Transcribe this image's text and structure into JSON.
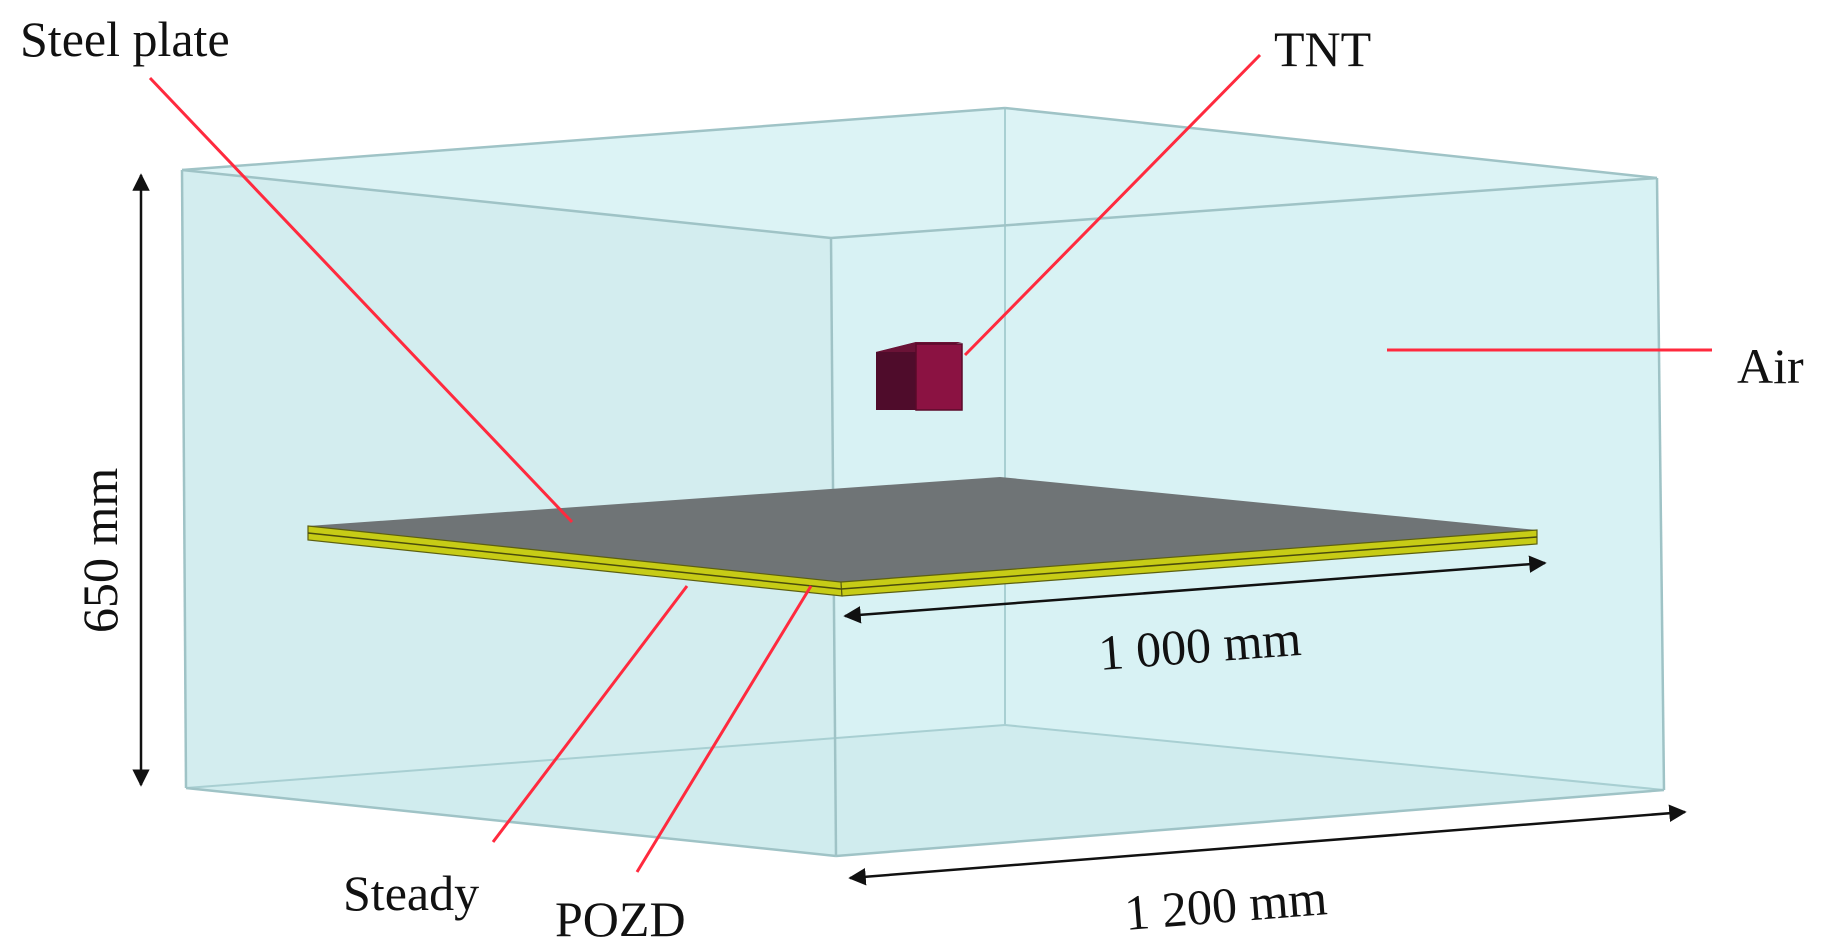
{
  "labels": {
    "steel_plate": "Steel plate",
    "tnt": "TNT",
    "air": "Air",
    "steady": "Steady",
    "pozd": "POZD",
    "height_dim": "650 mm",
    "plate_dim": "1 000 mm",
    "box_dim": "1 200 mm"
  },
  "colors": {
    "air_fill": "#d6f1f3",
    "air_edge": "#9fc8cb",
    "steel_top": "#6f7476",
    "plate_layer": "#c7cc16",
    "tnt_front": "#8b1242",
    "tnt_side": "#4f0c2b",
    "leader": "#ff2a3e",
    "dimension": "#111111"
  }
}
